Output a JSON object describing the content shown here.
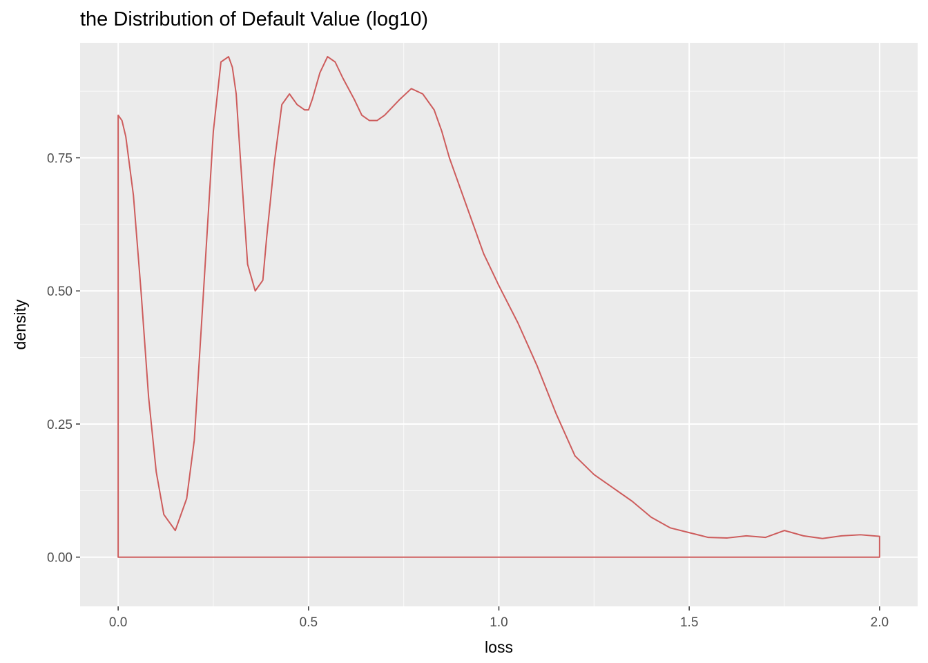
{
  "chart_data": {
    "type": "area",
    "title": "the Distribution of Default Value (log10)",
    "xlabel": "loss",
    "ylabel": "density",
    "xlim": [
      -0.1,
      2.1
    ],
    "ylim": [
      -0.0925,
      0.966
    ],
    "x_ticks": [
      0.0,
      0.5,
      1.0,
      1.5,
      2.0
    ],
    "x_tick_labels": [
      "0.0",
      "0.5",
      "1.0",
      "1.5",
      "2.0"
    ],
    "y_ticks": [
      0.0,
      0.25,
      0.5,
      0.75
    ],
    "y_tick_labels": [
      "0.00",
      "0.25",
      "0.50",
      "0.75"
    ],
    "grid": true,
    "colors": {
      "line": "#cd5c5c",
      "panel": "#ebebeb",
      "grid": "#ffffff"
    },
    "series": [
      {
        "x": [
          0.0,
          0.01,
          0.02,
          0.04,
          0.06,
          0.08,
          0.1,
          0.12,
          0.15,
          0.18,
          0.2,
          0.22,
          0.25,
          0.27,
          0.29,
          0.3,
          0.31,
          0.32,
          0.34,
          0.36,
          0.38,
          0.39,
          0.41,
          0.43,
          0.45,
          0.47,
          0.49,
          0.5,
          0.51,
          0.53,
          0.55,
          0.57,
          0.59,
          0.62,
          0.64,
          0.66,
          0.68,
          0.7,
          0.74,
          0.77,
          0.8,
          0.83,
          0.85,
          0.87,
          0.9,
          0.93,
          0.96,
          1.0,
          1.05,
          1.1,
          1.15,
          1.2,
          1.25,
          1.3,
          1.35,
          1.4,
          1.45,
          1.5,
          1.55,
          1.6,
          1.65,
          1.7,
          1.75,
          1.8,
          1.85,
          1.9,
          1.95,
          2.0
        ],
        "y": [
          0.83,
          0.82,
          0.79,
          0.68,
          0.5,
          0.3,
          0.16,
          0.08,
          0.05,
          0.11,
          0.22,
          0.45,
          0.8,
          0.93,
          0.94,
          0.92,
          0.87,
          0.76,
          0.55,
          0.5,
          0.52,
          0.6,
          0.74,
          0.85,
          0.87,
          0.85,
          0.84,
          0.84,
          0.86,
          0.91,
          0.94,
          0.93,
          0.9,
          0.86,
          0.83,
          0.82,
          0.82,
          0.83,
          0.86,
          0.88,
          0.87,
          0.84,
          0.8,
          0.75,
          0.69,
          0.63,
          0.57,
          0.51,
          0.44,
          0.36,
          0.27,
          0.19,
          0.155,
          0.13,
          0.105,
          0.075,
          0.055,
          0.046,
          0.037,
          0.036,
          0.04,
          0.037,
          0.05,
          0.04,
          0.035,
          0.04,
          0.042,
          0.039
        ]
      }
    ]
  }
}
